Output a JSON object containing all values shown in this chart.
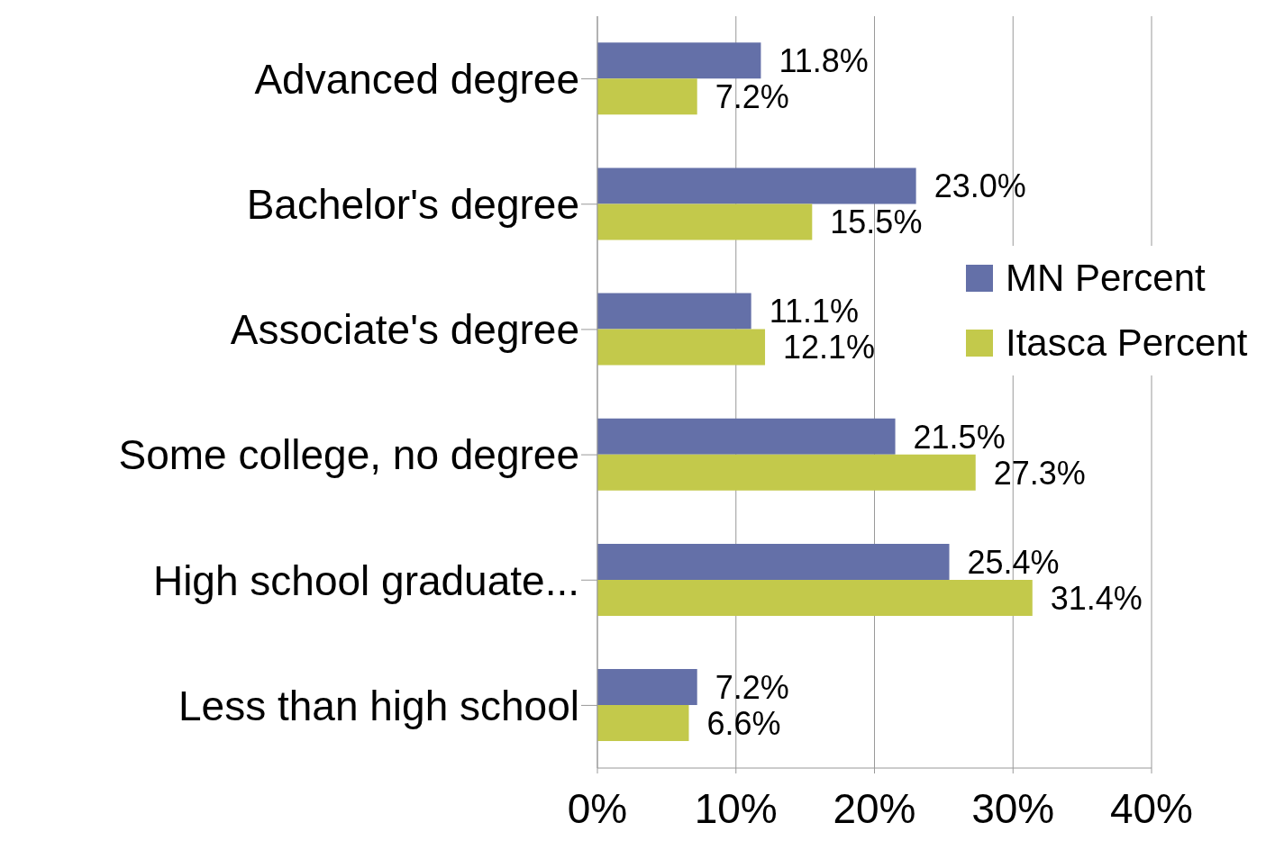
{
  "chart_data": {
    "type": "bar",
    "orientation": "horizontal",
    "categories": [
      "Advanced degree",
      "Bachelor's degree",
      "Associate's degree",
      "Some college, no degree",
      "High school graduate...",
      "Less than high school"
    ],
    "series": [
      {
        "name": "MN Percent",
        "color": "#6470a8",
        "values": [
          11.8,
          23.0,
          11.1,
          21.5,
          25.4,
          7.2
        ],
        "value_labels": [
          "11.8%",
          "23.0%",
          "11.1%",
          "21.5%",
          "25.4%",
          "7.2%"
        ]
      },
      {
        "name": "Itasca Percent",
        "color": "#c3c94b",
        "values": [
          7.2,
          15.5,
          12.1,
          27.3,
          31.4,
          6.6
        ],
        "value_labels": [
          "7.2%",
          "15.5%",
          "12.1%",
          "27.3%",
          "31.4%",
          "6.6%"
        ]
      }
    ],
    "xlim": [
      0,
      40
    ],
    "xticks": [
      {
        "value": 0,
        "label": "0%"
      },
      {
        "value": 10,
        "label": "10%"
      },
      {
        "value": 20,
        "label": "20%"
      },
      {
        "value": 30,
        "label": "30%"
      },
      {
        "value": 40,
        "label": "40%"
      }
    ],
    "grid": "x",
    "legend": "right"
  }
}
